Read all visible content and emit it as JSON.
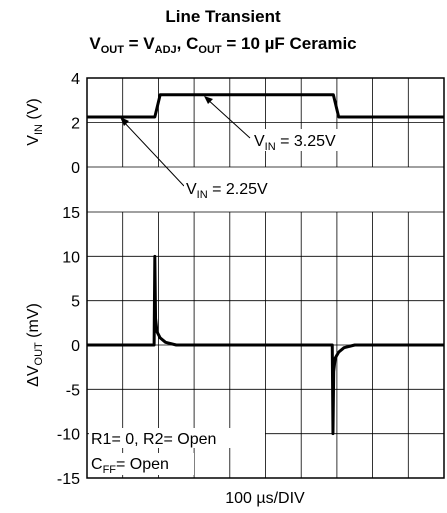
{
  "chart_data": [
    {
      "type": "line",
      "title": "Line Transient",
      "subtitle": {
        "parts": [
          "V",
          "OUT",
          " = V",
          "ADJ",
          ", C",
          "OUT",
          " = 10 µF Ceramic"
        ]
      },
      "y_label": {
        "parts": [
          "V",
          "IN",
          " (V)"
        ]
      },
      "xlim": [
        0,
        1000
      ],
      "xticks": [
        0,
        100,
        200,
        300,
        400,
        500,
        600,
        700,
        800,
        900,
        1000
      ],
      "ylim": [
        0,
        4
      ],
      "yticks": [
        0,
        2,
        4
      ],
      "grid": true,
      "color": "#000000",
      "x": [
        0,
        190,
        205,
        690,
        705,
        1000
      ],
      "values": [
        2.25,
        2.25,
        3.25,
        3.25,
        2.25,
        2.25
      ],
      "annotations": [
        {
          "parts": [
            "V",
            "IN",
            " = 3.25V"
          ]
        },
        {
          "parts": [
            "V",
            "IN",
            " = 2.25V"
          ]
        }
      ]
    },
    {
      "type": "line",
      "y_label": {
        "parts": [
          "ΔV",
          "OUT",
          " (mV)"
        ]
      },
      "x_label": "100 µs/DIV",
      "xlim": [
        0,
        1000
      ],
      "xticks": [
        0,
        100,
        200,
        300,
        400,
        500,
        600,
        700,
        800,
        900,
        1000
      ],
      "ylim": [
        -15,
        15
      ],
      "yticks": [
        -15,
        -10,
        -5,
        0,
        5,
        10,
        15
      ],
      "grid": true,
      "color": "#000000",
      "x": [
        0,
        188,
        190,
        192,
        196,
        205,
        220,
        250,
        687,
        689,
        691,
        695,
        705,
        720,
        750,
        1000
      ],
      "values": [
        0,
        0,
        10,
        3,
        1.5,
        0.8,
        0.3,
        0,
        0,
        -10,
        -3,
        -1.5,
        -0.8,
        -0.3,
        0,
        0
      ],
      "annotations": [
        {
          "parts": [
            "R1= 0, R2= Open"
          ]
        },
        {
          "parts": [
            "C",
            "FF",
            "= Open"
          ]
        }
      ]
    }
  ]
}
